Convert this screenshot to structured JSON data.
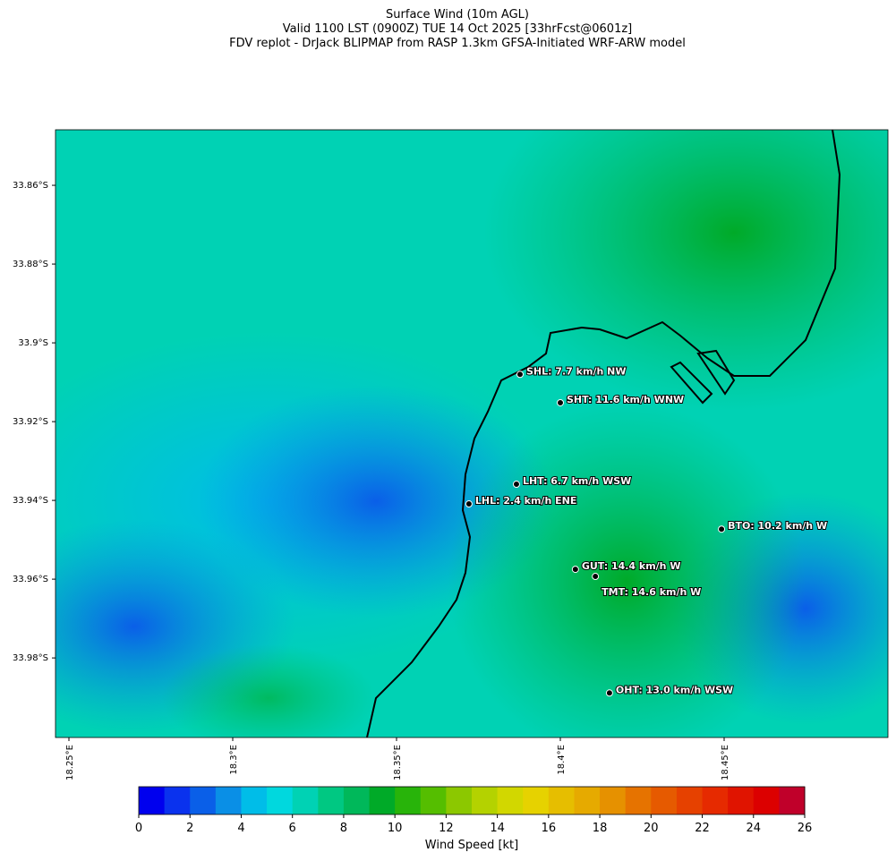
{
  "title": [
    "Surface Wind (10m AGL)",
    "Valid 1100 LST (0900Z) TUE 14 Oct 2025 [33hrFcst@0601z]",
    "FDV replot - DrJack BLIPMAP from RASP 1.3km GFSA-Initiated WRF-ARW model"
  ],
  "map": {
    "xlim": [
      18.2459,
      18.5
    ],
    "ylim": [
      -34.0002,
      -33.8459
    ],
    "xticks": [
      {
        "value": 18.25,
        "label": "18.25°E"
      },
      {
        "value": 18.3,
        "label": "18.3°E"
      },
      {
        "value": 18.35,
        "label": "18.35°E"
      },
      {
        "value": 18.4,
        "label": "18.4°E"
      },
      {
        "value": 18.45,
        "label": "18.45°E"
      }
    ],
    "yticks": [
      {
        "value": -33.86,
        "label": "33.86°S"
      },
      {
        "value": -33.88,
        "label": "33.88°S"
      },
      {
        "value": -33.9,
        "label": "33.9°S"
      },
      {
        "value": -33.92,
        "label": "33.92°S"
      },
      {
        "value": -33.94,
        "label": "33.94°S"
      },
      {
        "value": -33.96,
        "label": "33.96°S"
      },
      {
        "value": -33.98,
        "label": "33.98°S"
      }
    ],
    "stations": [
      {
        "label": "SHL: 7.7 km/h NW",
        "lon": 18.3877,
        "lat": -33.908
      },
      {
        "label": "SHT: 11.6 km/h WNW",
        "lon": 18.4,
        "lat": -33.9152
      },
      {
        "label": "LHT: 6.7 km/h WSW",
        "lon": 18.3866,
        "lat": -33.9359
      },
      {
        "label": "LHL: 2.4 km/h ENE",
        "lon": 18.3721,
        "lat": -33.9409
      },
      {
        "label": "BTO: 10.2 km/h W",
        "lon": 18.4492,
        "lat": -33.9473
      },
      {
        "label": "GUT: 14.4 km/h W",
        "lon": 18.4046,
        "lat": -33.9575
      },
      {
        "label": "TMT: 14.6 km/h W",
        "lon": 18.4107,
        "lat": -33.9593
      },
      {
        "label": "OHT: 13.0 km/h WSW",
        "lon": 18.415,
        "lat": -33.9889
      }
    ]
  },
  "colorbar": {
    "label": "Wind Speed [kt]",
    "lim": [
      0,
      26
    ],
    "ticks": [
      0,
      2,
      4,
      6,
      8,
      10,
      12,
      14,
      16,
      18,
      20,
      22,
      24,
      26
    ],
    "colors": [
      "#0000ee",
      "#0a32ee",
      "#0a5fe8",
      "#0a8fe6",
      "#00bde8",
      "#00d8de",
      "#00d2b4",
      "#00c882",
      "#00b85a",
      "#00aa28",
      "#28b40a",
      "#55be00",
      "#8cc800",
      "#b4d200",
      "#d2d700",
      "#e6d200",
      "#e6be00",
      "#e6aa00",
      "#e69100",
      "#e67300",
      "#e65a00",
      "#e64100",
      "#e62a00",
      "#e01400",
      "#dc0000",
      "#c0002a"
    ]
  }
}
